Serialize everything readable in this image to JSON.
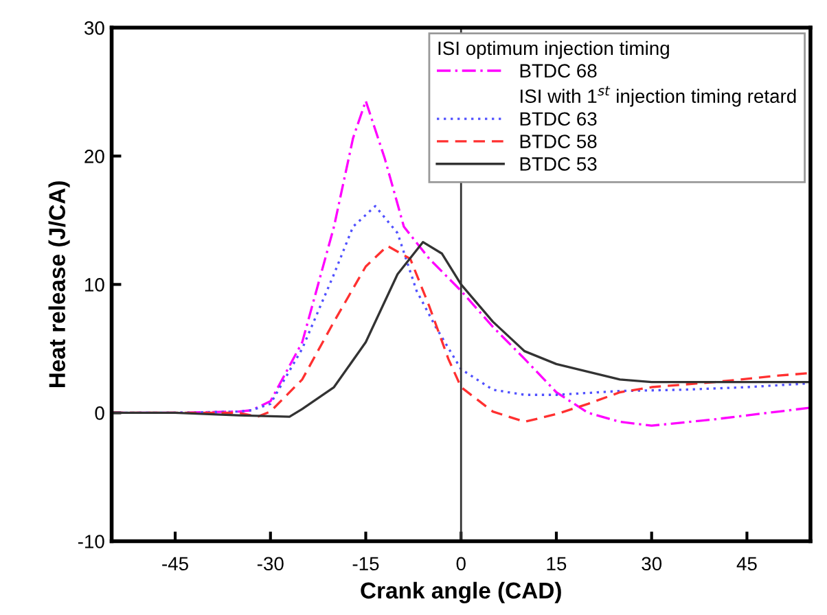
{
  "chart_data": {
    "type": "line",
    "xlabel": "Crank angle (CAD)",
    "ylabel": "Heat release (J/CA)",
    "xlim": [
      -55,
      55
    ],
    "xticks": [
      -45,
      -30,
      -15,
      0,
      15,
      30,
      45
    ],
    "ylim": [
      -10,
      30
    ],
    "yticks": [
      -10,
      0,
      10,
      20,
      30
    ],
    "grid": false,
    "legend": "top right",
    "marker": "none",
    "legend_title": "ISI optimum injection timing",
    "annotations": [
      "ISI with 1$^{st}$ injection timing retard"
    ],
    "ref_lines": [
      {
        "axis": "x",
        "value": 0,
        "color": "#333333",
        "line_style": "solid"
      }
    ],
    "series": [
      {
        "name": "BTDC 68",
        "color": "#ff00ff",
        "line_style": "dashdot",
        "x": [
          -55,
          -45,
          -35,
          -33,
          -30,
          -25,
          -20,
          -17,
          -15,
          -12,
          -9,
          -5,
          0,
          5,
          10,
          15,
          20,
          25,
          30,
          40,
          50,
          55
        ],
        "values": [
          0,
          0,
          0.1,
          0.2,
          0.9,
          5.5,
          14.5,
          21.4,
          24.3,
          19.8,
          14.5,
          12,
          9.5,
          6.7,
          4.2,
          1.6,
          0,
          -0.7,
          -1.0,
          -0.5,
          0.1,
          0.4
        ]
      },
      {
        "name": "BTDC 63",
        "color": "#5050ff",
        "line_style": "dotted",
        "x": [
          -55,
          -45,
          -35,
          -33,
          -30,
          -25,
          -20,
          -17,
          -13.5,
          -10,
          -7,
          -4,
          0,
          5,
          10,
          15,
          25,
          35,
          45,
          55
        ],
        "values": [
          0,
          0,
          0.1,
          0.2,
          0.7,
          5,
          10.8,
          14.5,
          16.1,
          14,
          9.5,
          6.7,
          3.4,
          1.8,
          1.4,
          1.4,
          1.7,
          1.8,
          2,
          2.3
        ]
      },
      {
        "name": "BTDC 58",
        "color": "#ff3030",
        "line_style": "dashed",
        "x": [
          -55,
          -45,
          -35,
          -32,
          -30,
          -25,
          -20,
          -15,
          -11.6,
          -8,
          -5,
          -2,
          0,
          5,
          10,
          15,
          20,
          25,
          30,
          40,
          50,
          55
        ],
        "values": [
          0,
          0,
          0,
          -0.3,
          0.1,
          2.6,
          7.1,
          11.4,
          13,
          12,
          8.3,
          4.2,
          2,
          0.1,
          -0.7,
          -0.1,
          0.7,
          1.6,
          2,
          2.4,
          2.9,
          3.1
        ]
      },
      {
        "name": "BTDC 53",
        "color": "#333333",
        "line_style": "solid",
        "x": [
          -55,
          -45,
          -35,
          -27,
          -25,
          -20,
          -15,
          -10,
          -6,
          -3,
          0,
          5,
          10,
          15,
          20,
          25,
          30,
          40,
          55
        ],
        "values": [
          0,
          0,
          -0.2,
          -0.3,
          0.3,
          2,
          5.5,
          10.8,
          13.3,
          12.4,
          10,
          7.1,
          4.8,
          3.8,
          3.2,
          2.6,
          2.4,
          2.4,
          2.4
        ]
      }
    ]
  }
}
